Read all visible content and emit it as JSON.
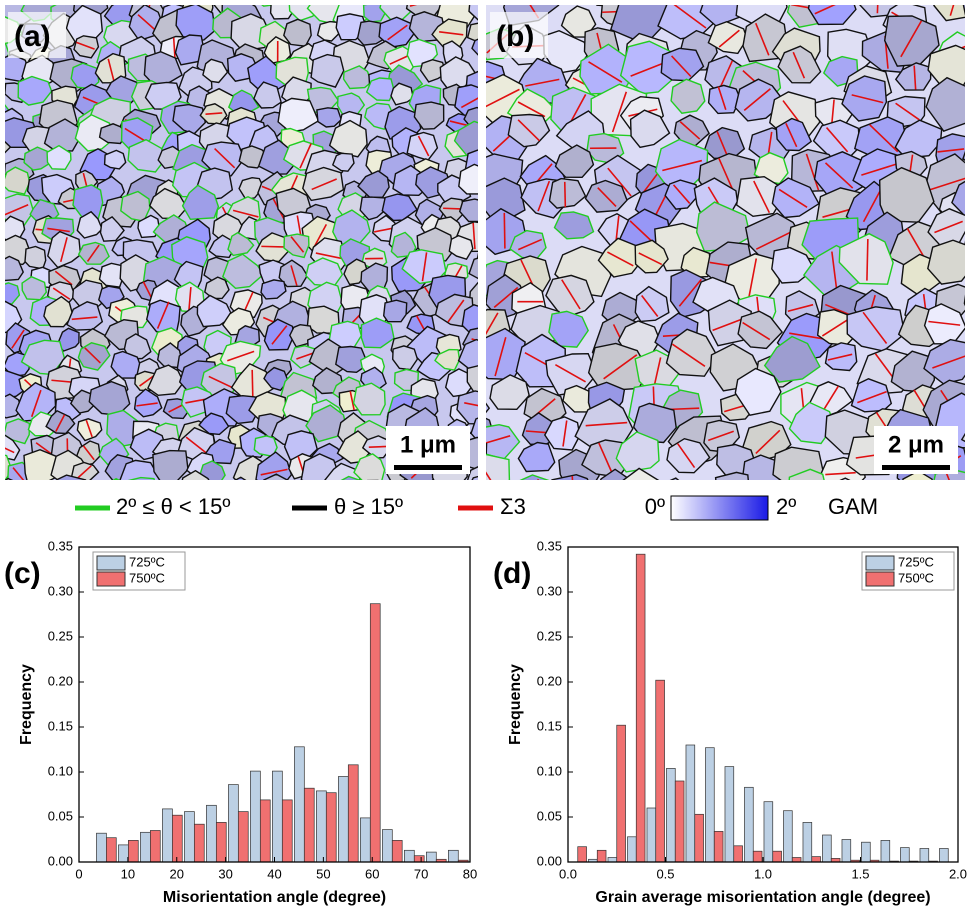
{
  "micrographs": [
    {
      "label": "(a)",
      "scale_bar": "1 μm"
    },
    {
      "label": "(b)",
      "scale_bar": "2 μm"
    }
  ],
  "legend": {
    "low_angle": "2º ≤ θ < 15º",
    "high_angle": "θ ≥ 15º",
    "sigma3": "Σ3",
    "gam_min": "0º",
    "gam_max": "2º",
    "gam": "GAM"
  },
  "chart_data": [
    {
      "type": "bar",
      "panel": "(c)",
      "xlabel": "Misorientation angle (degree)",
      "ylabel": "Frequency",
      "x": [
        5.6,
        10.1,
        14.6,
        19.1,
        23.6,
        28.1,
        32.6,
        37.1,
        41.6,
        46.1,
        50.6,
        55.1,
        59.6,
        64.1,
        68.6,
        73.1,
        77.6
      ],
      "series": [
        {
          "name": "725ºC",
          "color": "#bcd0e4",
          "values": [
            0.032,
            0.019,
            0.033,
            0.059,
            0.056,
            0.063,
            0.086,
            0.101,
            0.101,
            0.128,
            0.079,
            0.095,
            0.049,
            0.036,
            0.013,
            0.011,
            0.013
          ]
        },
        {
          "name": "750ºC",
          "color": "#f07070",
          "values": [
            0.027,
            0.024,
            0.035,
            0.052,
            0.042,
            0.044,
            0.056,
            0.069,
            0.069,
            0.082,
            0.077,
            0.108,
            0.287,
            0.024,
            0.007,
            0.003,
            0.002
          ]
        }
      ],
      "xlim": [
        0,
        80
      ],
      "xticks": [
        0,
        10,
        20,
        30,
        40,
        50,
        60,
        70,
        80
      ],
      "ylim": [
        0,
        0.35
      ],
      "yticks": [
        {
          "value": 0,
          "label": "0.00"
        },
        {
          "value": 0.05,
          "label": "0.05"
        },
        {
          "value": 0.1,
          "label": "0.10"
        },
        {
          "value": 0.15,
          "label": "0.15"
        },
        {
          "value": 0.2,
          "label": "0.20"
        },
        {
          "value": 0.25,
          "label": "0.25"
        },
        {
          "value": 0.3,
          "label": "0.30"
        },
        {
          "value": 0.35,
          "label": "0.35"
        }
      ],
      "legend_position": "top-left"
    },
    {
      "type": "bar",
      "panel": "(d)",
      "xlabel": "Grain average misorientation angle (degree)",
      "ylabel": "Frequency",
      "x": [
        0.05,
        0.15,
        0.25,
        0.35,
        0.45,
        0.55,
        0.65,
        0.75,
        0.85,
        0.95,
        1.05,
        1.15,
        1.25,
        1.35,
        1.45,
        1.55,
        1.65,
        1.75,
        1.85,
        1.95
      ],
      "series": [
        {
          "name": "725ºC",
          "color": "#bcd0e4",
          "values": [
            0,
            0.003,
            0.005,
            0.028,
            0.06,
            0.104,
            0.13,
            0.127,
            0.106,
            0.083,
            0.067,
            0.057,
            0.044,
            0.03,
            0.025,
            0.022,
            0.024,
            0.016,
            0.015,
            0.015
          ]
        },
        {
          "name": "750ºC",
          "color": "#f07070",
          "values": [
            0.017,
            0.013,
            0.152,
            0.342,
            0.202,
            0.09,
            0.053,
            0.034,
            0.018,
            0.012,
            0.012,
            0.005,
            0.006,
            0.004,
            0.002,
            0.002,
            0.001,
            0.001,
            0.001,
            0
          ]
        }
      ],
      "xlim": [
        0,
        2
      ],
      "xticks": [
        {
          "value": 0,
          "label": "0.0"
        },
        {
          "value": 0.5,
          "label": "0.5"
        },
        {
          "value": 1,
          "label": "1.0"
        },
        {
          "value": 1.5,
          "label": "1.5"
        },
        {
          "value": 2,
          "label": "2.0"
        }
      ],
      "ylim": [
        0,
        0.35
      ],
      "yticks": [
        {
          "value": 0,
          "label": "0.00"
        },
        {
          "value": 0.05,
          "label": "0.05"
        },
        {
          "value": 0.1,
          "label": "0.10"
        },
        {
          "value": 0.15,
          "label": "0.15"
        },
        {
          "value": 0.2,
          "label": "0.20"
        },
        {
          "value": 0.25,
          "label": "0.25"
        },
        {
          "value": 0.3,
          "label": "0.30"
        },
        {
          "value": 0.35,
          "label": "0.35"
        }
      ],
      "legend_position": "top-right"
    }
  ]
}
